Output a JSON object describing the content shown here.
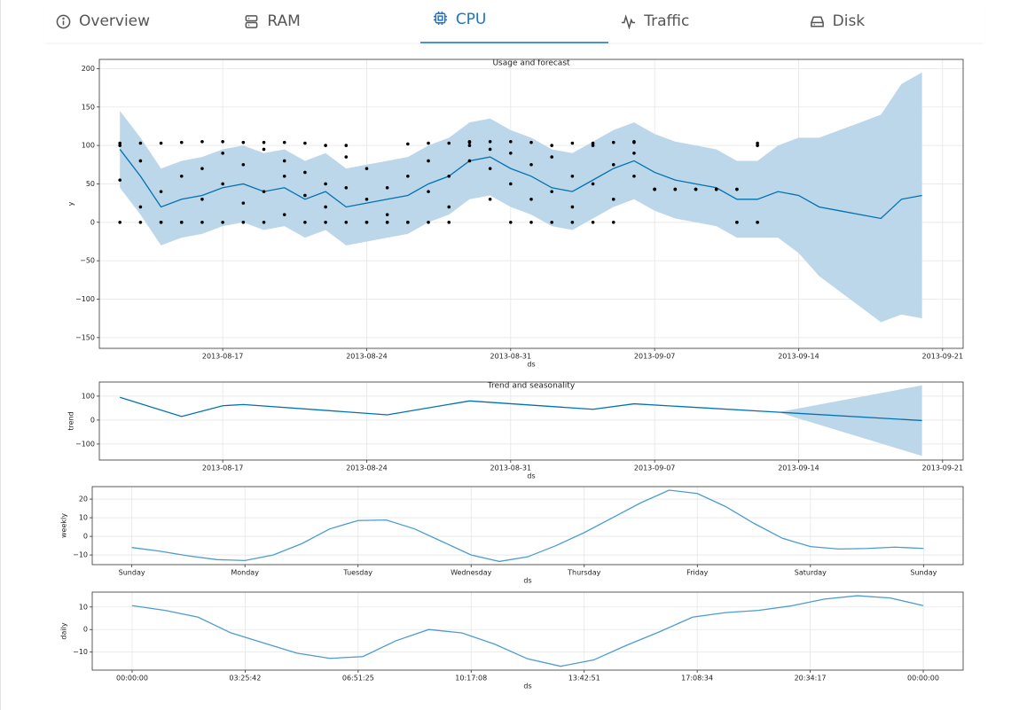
{
  "tabs": [
    {
      "label": "Overview"
    },
    {
      "label": "RAM"
    },
    {
      "label": "CPU",
      "active": true
    },
    {
      "label": "Traffic"
    },
    {
      "label": "Disk"
    }
  ],
  "chart_data": [
    {
      "type": "forecast",
      "title": "Usage and forecast",
      "xlabel": "ds",
      "ylabel": "y",
      "xlim": [
        "2013-08-11",
        "2013-09-22"
      ],
      "ylim": [
        -164,
        212
      ],
      "xticks": [
        "2013-08-17",
        "2013-08-24",
        "2013-08-31",
        "2013-09-07",
        "2013-09-14",
        "2013-09-21"
      ],
      "yticks": [
        {
          "value": -150,
          "label": "−150"
        },
        {
          "value": -100,
          "label": "−100"
        },
        {
          "value": -50,
          "label": "−50"
        },
        0,
        50,
        100,
        150,
        200
      ],
      "grid": true,
      "x": [
        "2013-08-12",
        "2013-08-13",
        "2013-08-14",
        "2013-08-15",
        "2013-08-16",
        "2013-08-17",
        "2013-08-18",
        "2013-08-19",
        "2013-08-20",
        "2013-08-21",
        "2013-08-22",
        "2013-08-23",
        "2013-08-24",
        "2013-08-25",
        "2013-08-26",
        "2013-08-27",
        "2013-08-28",
        "2013-08-29",
        "2013-08-30",
        "2013-08-31",
        "2013-09-01",
        "2013-09-02",
        "2013-09-03",
        "2013-09-04",
        "2013-09-05",
        "2013-09-06",
        "2013-09-07",
        "2013-09-08",
        "2013-09-09",
        "2013-09-10",
        "2013-09-11",
        "2013-09-12",
        "2013-09-13",
        "2013-09-14",
        "2013-09-15",
        "2013-09-16",
        "2013-09-17",
        "2013-09-18",
        "2013-09-19",
        "2013-09-20"
      ],
      "values": [
        95,
        60,
        20,
        30,
        35,
        45,
        50,
        40,
        45,
        30,
        40,
        20,
        25,
        30,
        35,
        50,
        60,
        80,
        85,
        70,
        60,
        45,
        40,
        55,
        70,
        80,
        65,
        55,
        50,
        45,
        30,
        30,
        40,
        35,
        20,
        15,
        10,
        5,
        30,
        35
      ],
      "color": "#0072b2",
      "band": {
        "color": "#bcd7ea",
        "upper": [
          145,
          110,
          70,
          80,
          85,
          95,
          100,
          90,
          95,
          80,
          90,
          70,
          75,
          80,
          85,
          100,
          110,
          130,
          135,
          120,
          110,
          95,
          90,
          105,
          120,
          130,
          115,
          105,
          100,
          95,
          80,
          80,
          100,
          110,
          110,
          120,
          130,
          140,
          180,
          195
        ],
        "lower": [
          45,
          10,
          -30,
          -20,
          -15,
          -5,
          0,
          -10,
          -5,
          -20,
          -10,
          -30,
          -25,
          -20,
          -15,
          0,
          10,
          30,
          35,
          20,
          10,
          -5,
          -10,
          5,
          20,
          30,
          15,
          5,
          0,
          -5,
          -20,
          -20,
          -20,
          -40,
          -70,
          -90,
          -110,
          -130,
          -120,
          -125
        ]
      },
      "points": {
        "color": "#000000",
        "x": [
          "2013-08-12",
          "2013-08-12",
          "2013-08-12",
          "2013-08-12",
          "2013-08-13",
          "2013-08-13",
          "2013-08-13",
          "2013-08-13",
          "2013-08-14",
          "2013-08-14",
          "2013-08-14",
          "2013-08-14",
          "2013-08-15",
          "2013-08-15",
          "2013-08-15",
          "2013-08-15",
          "2013-08-16",
          "2013-08-16",
          "2013-08-16",
          "2013-08-16",
          "2013-08-17",
          "2013-08-17",
          "2013-08-17",
          "2013-08-17",
          "2013-08-18",
          "2013-08-18",
          "2013-08-18",
          "2013-08-18",
          "2013-08-19",
          "2013-08-19",
          "2013-08-19",
          "2013-08-19",
          "2013-08-20",
          "2013-08-20",
          "2013-08-20",
          "2013-08-20",
          "2013-08-21",
          "2013-08-21",
          "2013-08-21",
          "2013-08-21",
          "2013-08-22",
          "2013-08-22",
          "2013-08-22",
          "2013-08-22",
          "2013-08-23",
          "2013-08-23",
          "2013-08-23",
          "2013-08-23",
          "2013-08-24",
          "2013-08-24",
          "2013-08-24",
          "2013-08-24",
          "2013-08-25",
          "2013-08-25",
          "2013-08-25",
          "2013-08-25",
          "2013-08-26",
          "2013-08-26",
          "2013-08-26",
          "2013-08-26",
          "2013-08-27",
          "2013-08-27",
          "2013-08-27",
          "2013-08-27",
          "2013-08-28",
          "2013-08-28",
          "2013-08-28",
          "2013-08-28",
          "2013-08-29",
          "2013-08-29",
          "2013-08-29",
          "2013-08-29",
          "2013-08-30",
          "2013-08-30",
          "2013-08-30",
          "2013-08-30",
          "2013-08-31",
          "2013-08-31",
          "2013-08-31",
          "2013-08-31",
          "2013-09-01",
          "2013-09-01",
          "2013-09-01",
          "2013-09-01",
          "2013-09-02",
          "2013-09-02",
          "2013-09-02",
          "2013-09-02",
          "2013-09-03",
          "2013-09-03",
          "2013-09-03",
          "2013-09-03",
          "2013-09-04",
          "2013-09-04",
          "2013-09-04",
          "2013-09-04",
          "2013-09-05",
          "2013-09-05",
          "2013-09-05",
          "2013-09-05",
          "2013-09-06",
          "2013-09-06",
          "2013-09-06",
          "2013-09-06",
          "2013-09-07",
          "2013-09-07",
          "2013-09-07",
          "2013-09-07",
          "2013-09-08",
          "2013-09-08",
          "2013-09-08",
          "2013-09-08",
          "2013-09-09",
          "2013-09-09",
          "2013-09-09",
          "2013-09-09",
          "2013-09-10",
          "2013-09-10",
          "2013-09-10",
          "2013-09-10",
          "2013-09-11",
          "2013-09-11",
          "2013-09-11",
          "2013-09-11",
          "2013-09-12",
          "2013-09-12",
          "2013-09-12",
          "2013-09-12"
        ],
        "values": [
          0,
          55,
          100,
          103,
          103,
          20,
          80,
          0,
          0,
          40,
          103,
          0,
          0,
          60,
          104,
          0,
          0,
          105,
          30,
          70,
          105,
          0,
          50,
          90,
          104,
          0,
          25,
          75,
          104,
          40,
          0,
          95,
          104,
          60,
          10,
          80,
          0,
          35,
          103,
          65,
          0,
          100,
          20,
          50,
          100,
          0,
          45,
          85,
          0,
          30,
          0,
          70,
          0,
          0,
          10,
          45,
          0,
          102,
          0,
          60,
          0,
          103,
          40,
          80,
          103,
          0,
          20,
          60,
          105,
          104,
          80,
          100,
          105,
          30,
          70,
          95,
          105,
          0,
          50,
          90,
          104,
          0,
          30,
          75,
          100,
          0,
          40,
          85,
          0,
          103,
          20,
          60,
          0,
          103,
          50,
          100,
          104,
          0,
          30,
          75,
          104,
          60,
          105,
          90,
          43,
          43,
          43,
          43,
          43,
          43,
          43,
          43,
          43,
          43,
          43,
          43,
          43,
          43,
          43,
          43,
          0,
          43,
          0,
          43,
          103,
          0,
          100,
          0
        ]
      }
    },
    {
      "type": "forecast",
      "title": "Trend and seasonality",
      "xlabel": "ds",
      "ylabel": "trend",
      "xlim": [
        "2013-08-11",
        "2013-09-22"
      ],
      "ylim": [
        -167,
        159
      ],
      "xticks": [
        "2013-08-17",
        "2013-08-24",
        "2013-08-31",
        "2013-09-07",
        "2013-09-14",
        "2013-09-21"
      ],
      "yticks": [
        {
          "value": -100,
          "label": "−100"
        },
        0,
        100
      ],
      "grid": true,
      "x": [
        "2013-08-12",
        "2013-08-15",
        "2013-08-17",
        "2013-08-18",
        "2013-08-25",
        "2013-08-29",
        "2013-09-04",
        "2013-09-06",
        "2013-09-13",
        "2013-09-20"
      ],
      "values": [
        95,
        15,
        60,
        65,
        22,
        80,
        45,
        68,
        33,
        -2
      ],
      "color": "#0072b2",
      "band": {
        "color": "#bcd7ea",
        "upper": [
          95,
          15,
          60,
          65,
          22,
          80,
          45,
          68,
          33,
          145
        ],
        "lower": [
          95,
          15,
          60,
          65,
          22,
          80,
          45,
          68,
          33,
          -150
        ]
      }
    },
    {
      "type": "forecast",
      "xlabel": "ds",
      "ylabel": "weekly",
      "xlim": [
        -0.35,
        7.35
      ],
      "ylim": [
        -15.2,
        26.7
      ],
      "xticks": [
        {
          "value": 0,
          "label": "Sunday"
        },
        {
          "value": 1,
          "label": "Monday"
        },
        {
          "value": 2,
          "label": "Tuesday"
        },
        {
          "value": 3,
          "label": "Wednesday"
        },
        {
          "value": 4,
          "label": "Thursday"
        },
        {
          "value": 5,
          "label": "Friday"
        },
        {
          "value": 6,
          "label": "Saturday"
        },
        {
          "value": 7,
          "label": "Sunday"
        }
      ],
      "yticks": [
        {
          "value": -10,
          "label": "−10"
        },
        0,
        10,
        20
      ],
      "grid": true,
      "x": [
        0,
        0.25,
        0.5,
        0.75,
        1,
        1.25,
        1.5,
        1.75,
        2,
        2.25,
        2.5,
        2.75,
        3,
        3.25,
        3.5,
        3.75,
        4,
        4.25,
        4.5,
        4.75,
        5,
        5.25,
        5.5,
        5.75,
        6,
        6.25,
        6.5,
        6.75,
        7
      ],
      "values": [
        -6,
        -8,
        -10.5,
        -12.5,
        -13,
        -10,
        -4,
        4,
        8.5,
        8.8,
        4,
        -3,
        -10,
        -13.5,
        -11,
        -5,
        2,
        10,
        18,
        24.8,
        23,
        16,
        7,
        -1,
        -5.5,
        -6.8,
        -6.5,
        -5.8,
        -6.5
      ],
      "color": "#4c9ccf"
    },
    {
      "type": "forecast",
      "xlabel": "ds",
      "ylabel": "daily",
      "xlim": [
        -1.21,
        25.21
      ],
      "ylim": [
        -18,
        16.6
      ],
      "xticks": [
        {
          "value": 0,
          "label": "00:00:00"
        },
        {
          "value": 3.428,
          "label": "03:25:42"
        },
        {
          "value": 6.857,
          "label": "06:51:25"
        },
        {
          "value": 10.285,
          "label": "10:17:08"
        },
        {
          "value": 13.714,
          "label": "13:42:51"
        },
        {
          "value": 17.142,
          "label": "17:08:34"
        },
        {
          "value": 20.571,
          "label": "20:34:17"
        },
        {
          "value": 24,
          "label": "00:00:00"
        }
      ],
      "yticks": [
        {
          "value": -10,
          "label": "−10"
        },
        0,
        10
      ],
      "grid": true,
      "x": [
        0,
        1,
        2,
        3,
        4,
        5,
        6,
        7,
        8,
        9,
        10,
        11,
        12,
        13,
        14,
        15,
        16,
        17,
        18,
        19,
        20,
        21,
        22,
        23,
        24
      ],
      "values": [
        10.6,
        8.5,
        5.5,
        -1.5,
        -6,
        -10.5,
        -12.8,
        -12,
        -5,
        0,
        -1.5,
        -6.5,
        -13,
        -16.3,
        -13.5,
        -7,
        -1,
        5.5,
        7.5,
        8.5,
        10.5,
        13.5,
        15,
        14,
        10.6
      ],
      "color": "#4c9ccf"
    }
  ]
}
